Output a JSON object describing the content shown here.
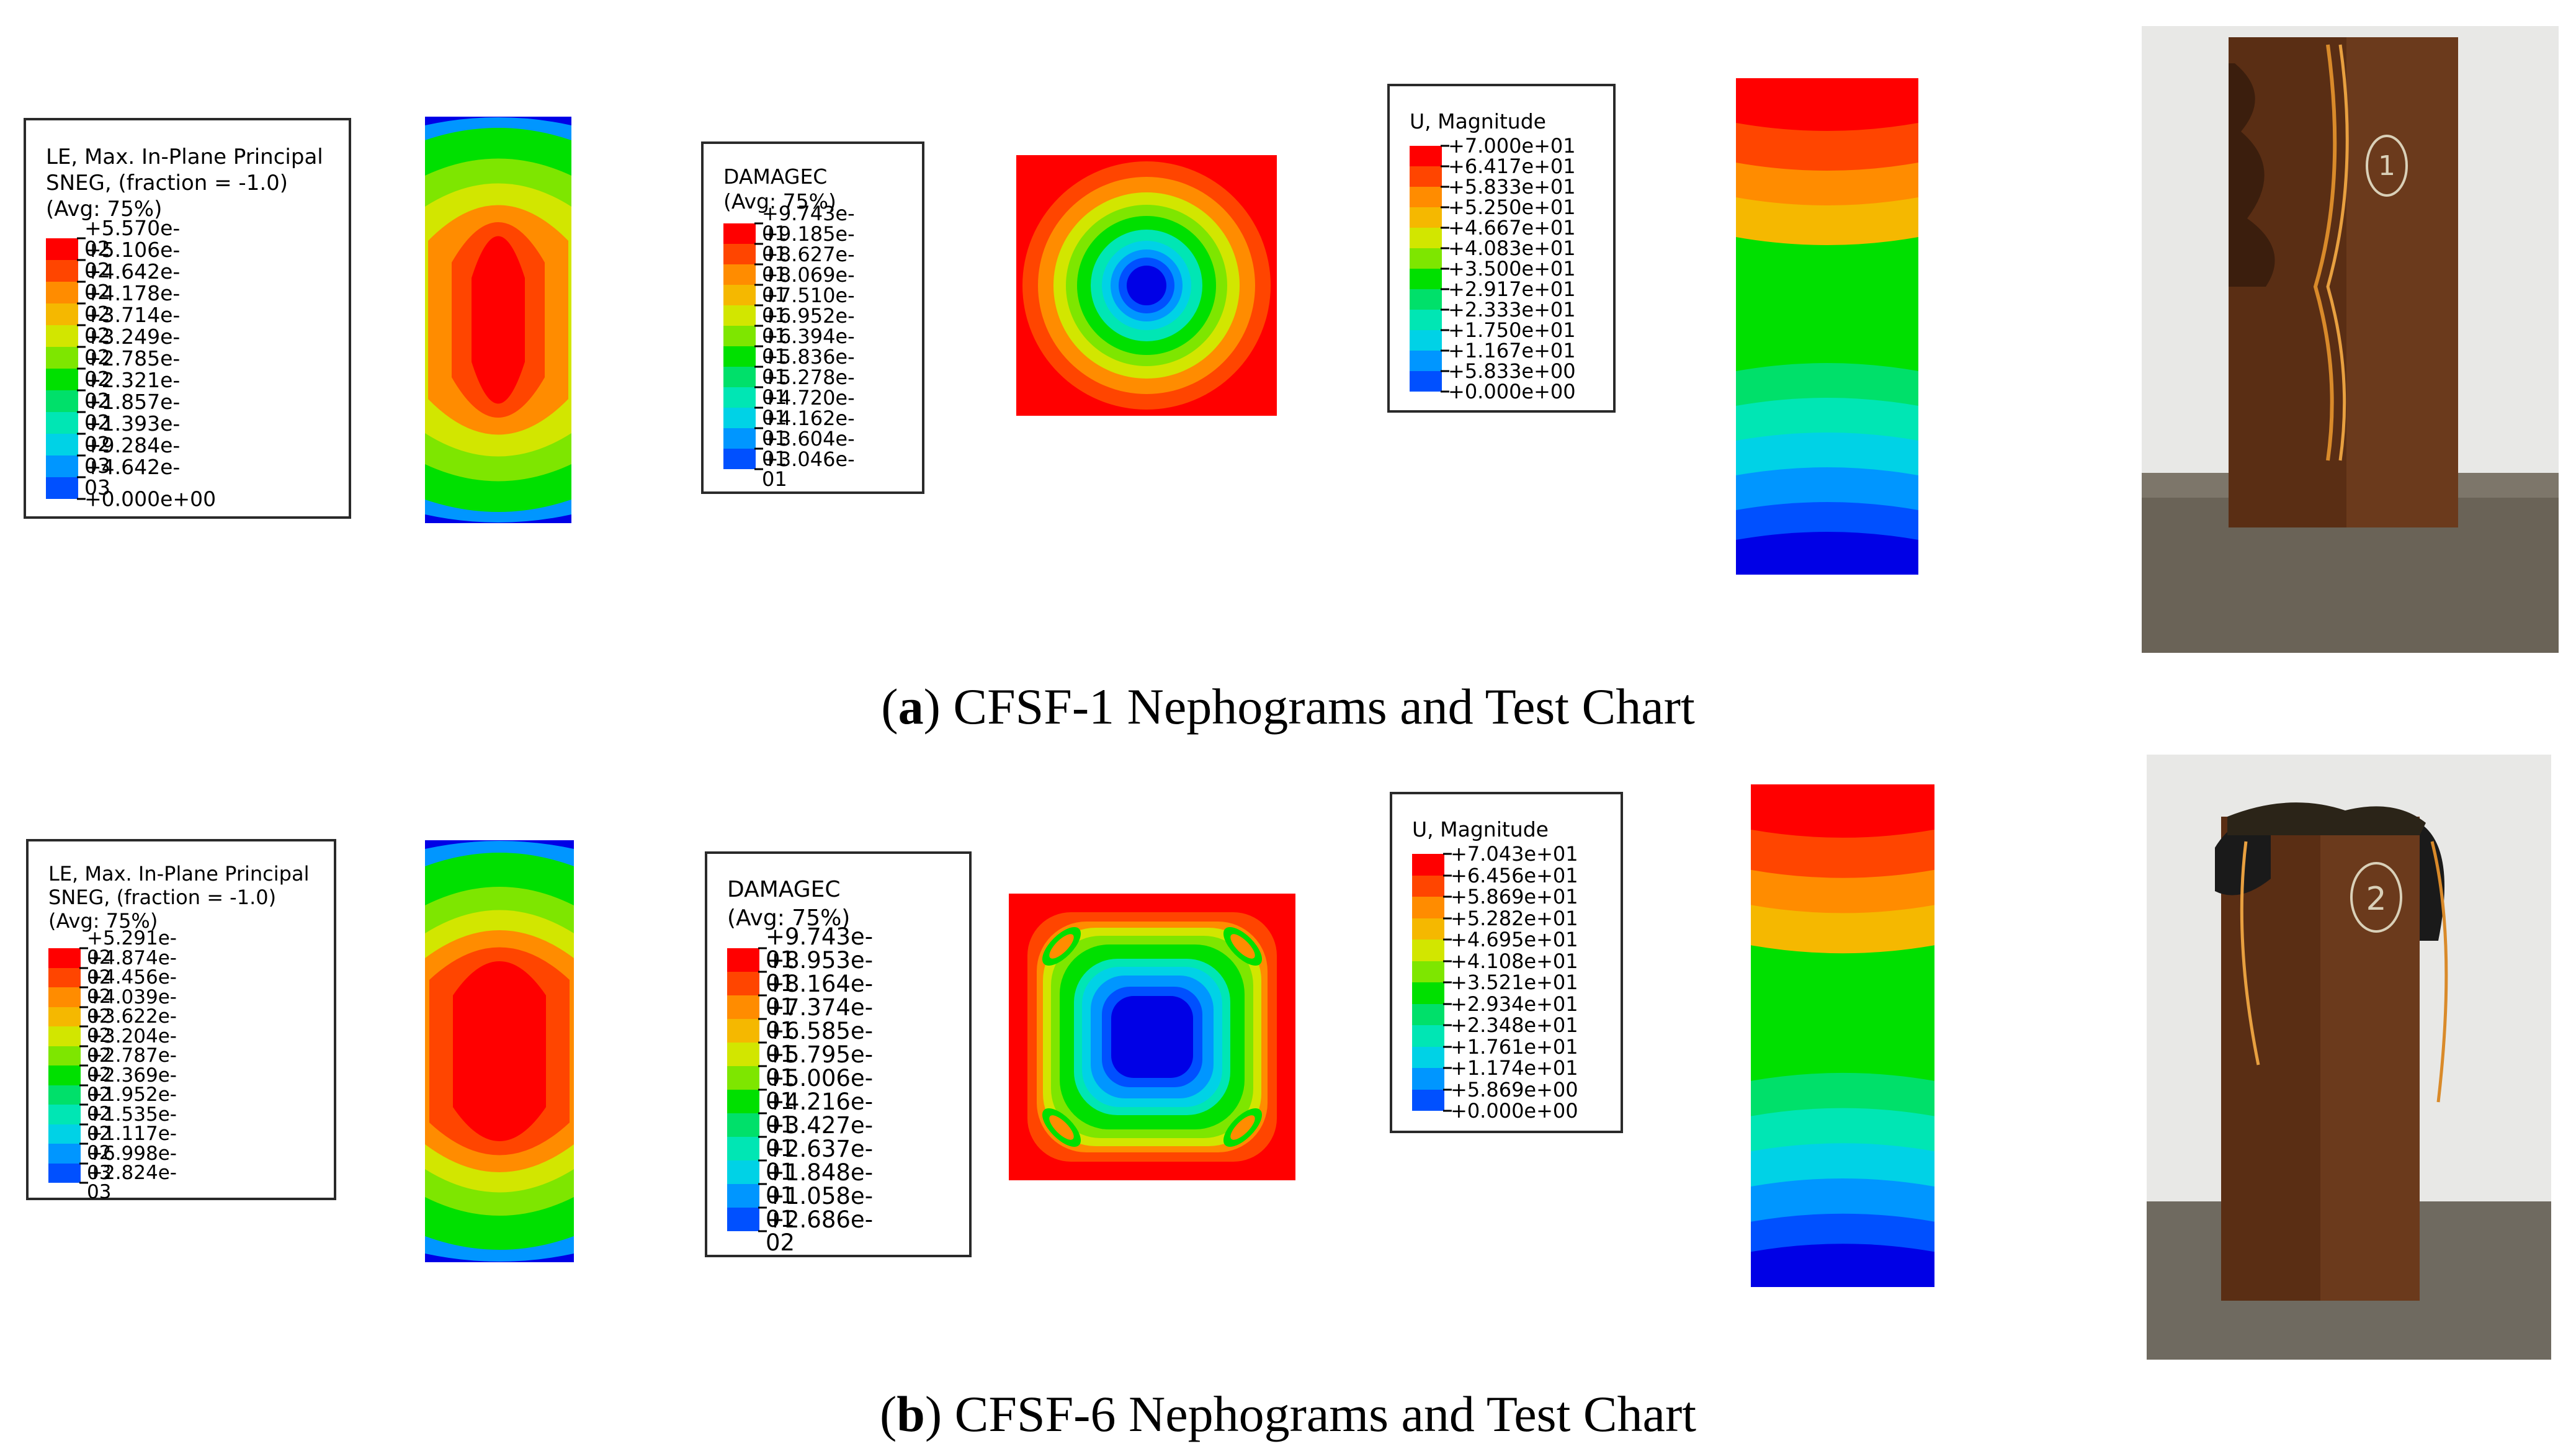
{
  "row_a": {
    "strain_legend": {
      "title_lines": [
        "LE, Max. In-Plane Principal",
        "SNEG, (fraction = -1.0)",
        "(Avg: 75%)"
      ],
      "values": [
        "+5.570e-02",
        "+5.106e-02",
        "+4.642e-02",
        "+4.178e-02",
        "+3.714e-02",
        "+3.249e-02",
        "+2.785e-02",
        "+2.321e-02",
        "+1.857e-02",
        "+1.393e-02",
        "+9.284e-03",
        "+4.642e-03",
        "+0.000e+00"
      ]
    },
    "damage_legend": {
      "title_lines": [
        "DAMAGEC",
        "(Avg: 75%)"
      ],
      "values": [
        "+9.743e-01",
        "+9.185e-01",
        "+8.627e-01",
        "+8.069e-01",
        "+7.510e-01",
        "+6.952e-01",
        "+6.394e-01",
        "+5.836e-01",
        "+5.278e-01",
        "+4.720e-01",
        "+4.162e-01",
        "+3.604e-01",
        "+3.046e-01"
      ]
    },
    "disp_legend": {
      "title_lines": [
        "U, Magnitude"
      ],
      "values": [
        "+7.000e+01",
        "+6.417e+01",
        "+5.833e+01",
        "+5.250e+01",
        "+4.667e+01",
        "+4.083e+01",
        "+3.500e+01",
        "+2.917e+01",
        "+2.333e+01",
        "+1.750e+01",
        "+1.167e+01",
        "+5.833e+00",
        "+0.000e+00"
      ]
    },
    "specimen_label": "1",
    "caption_bold": "a",
    "caption_rest": ") CFSF-1 Nephograms and Test Chart"
  },
  "row_b": {
    "strain_legend": {
      "title_lines": [
        "LE, Max. In-Plane Principal",
        "SNEG, (fraction = -1.0)",
        "(Avg: 75%)"
      ],
      "values": [
        "+5.291e-02",
        "+4.874e-02",
        "+4.456e-02",
        "+4.039e-02",
        "+3.622e-02",
        "+3.204e-02",
        "+2.787e-02",
        "+2.369e-02",
        "+1.952e-02",
        "+1.535e-02",
        "+1.117e-02",
        "+6.998e-03",
        "+2.824e-03"
      ]
    },
    "damage_legend": {
      "title_lines": [
        "DAMAGEC",
        "(Avg: 75%)"
      ],
      "values": [
        "+9.743e-01",
        "+8.953e-01",
        "+8.164e-01",
        "+7.374e-01",
        "+6.585e-01",
        "+5.795e-01",
        "+5.006e-01",
        "+4.216e-01",
        "+3.427e-01",
        "+2.637e-01",
        "+1.848e-01",
        "+1.058e-01",
        "+2.686e-02"
      ]
    },
    "disp_legend": {
      "title_lines": [
        "U, Magnitude"
      ],
      "values": [
        "+7.043e+01",
        "+6.456e+01",
        "+5.869e+01",
        "+5.282e+01",
        "+4.695e+01",
        "+4.108e+01",
        "+3.521e+01",
        "+2.934e+01",
        "+2.348e+01",
        "+1.761e+01",
        "+1.174e+01",
        "+5.869e+00",
        "+0.000e+00"
      ]
    },
    "specimen_label": "2",
    "caption_bold": "b",
    "caption_rest": ") CFSF-6 Nephograms and Test Chart"
  },
  "colors": {
    "contour_scale": [
      "#ff0000",
      "#ff4500",
      "#ff8c00",
      "#f5b800",
      "#d2e600",
      "#7ee600",
      "#00e000",
      "#00e06a",
      "#00e6b4",
      "#00d2e6",
      "#0096ff",
      "#0050ff",
      "#0000e6"
    ],
    "steel": "#6b3a1c",
    "background_plastic": "#e8e8e6"
  }
}
